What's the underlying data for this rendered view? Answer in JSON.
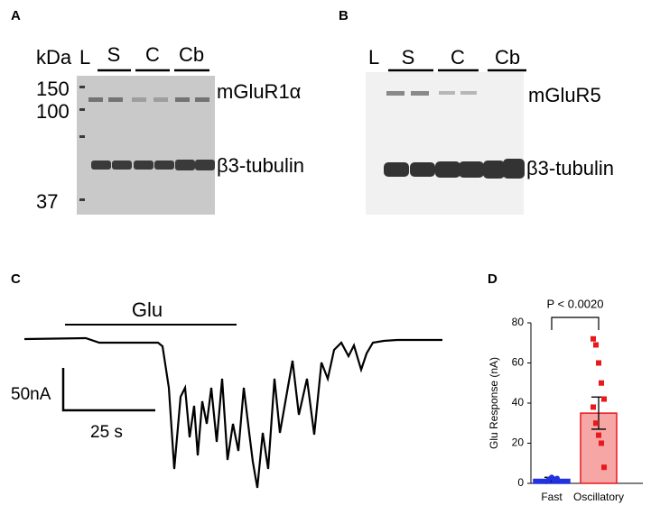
{
  "blot_a": {
    "letter": "A",
    "unit": "kDa",
    "ladder": "L",
    "groups": [
      "S",
      "C",
      "Cb"
    ],
    "markers": [
      "150",
      "100",
      "37"
    ],
    "bands": [
      "mGluR1α",
      "β3-tubulin"
    ]
  },
  "blot_b": {
    "letter": "B",
    "ladder": "L",
    "groups": [
      "S",
      "C",
      "Cb"
    ],
    "bands": [
      "mGluR5",
      "β3-tubulin"
    ]
  },
  "trace": {
    "letter": "C",
    "stimulus": "Glu",
    "scale_y": "50nA",
    "scale_x": "25 s"
  },
  "chart_data": {
    "type": "bar",
    "letter": "D",
    "annotation": "P < 0.0020",
    "ylabel": "Glu Response (nA)",
    "categories": [
      "Fast",
      "Oscillatory"
    ],
    "values": [
      2,
      35
    ],
    "errors": [
      1,
      8
    ],
    "colors": [
      "#2233dd",
      "#e8191c"
    ],
    "fills": [
      "#2233dd",
      "#f7a6a6"
    ],
    "points": [
      [
        1,
        2,
        3,
        1.5,
        2.5,
        1,
        2,
        3,
        1.5,
        2
      ],
      [
        72,
        69,
        60,
        50,
        42,
        38,
        30,
        24,
        20,
        8
      ]
    ],
    "ylim": [
      0,
      80
    ],
    "yticks": [
      0,
      20,
      40,
      60,
      80
    ]
  }
}
